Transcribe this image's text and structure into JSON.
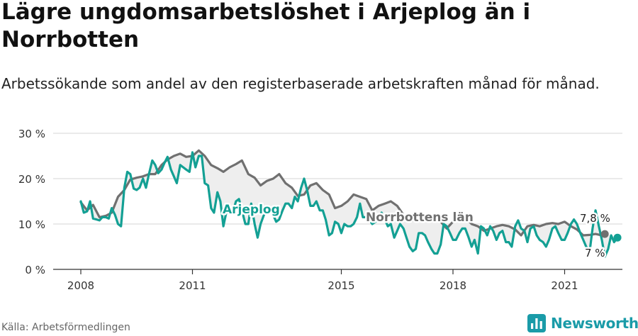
{
  "title": "Lägre ungdomsarbetslöshet i Arjeplog än i Norrbotten",
  "subtitle": "Arbetssökande som andel av den registerbaserade arbetskraften månad för månad.",
  "source": "Källa: Arbetsförmedlingen",
  "brand": "Newsworthy",
  "colors": {
    "arjeplog": "#13a094",
    "norrbotten": "#707070",
    "grid": "#dddddd",
    "fill": "#eeeeee",
    "brand": "#1a9ba8"
  },
  "chart_data": {
    "type": "line",
    "xlim": [
      2008,
      2022.75
    ],
    "ylim": [
      0,
      30
    ],
    "x_ticks": [
      {
        "value": 2008,
        "label": "2008"
      },
      {
        "value": 2011,
        "label": "2011"
      },
      {
        "value": 2015,
        "label": "2015"
      },
      {
        "value": 2018,
        "label": "2018"
      },
      {
        "value": 2021,
        "label": "2021"
      }
    ],
    "y_ticks": [
      {
        "value": 0,
        "label": "0 %"
      },
      {
        "value": 10,
        "label": "10 %"
      },
      {
        "value": 20,
        "label": "20 %"
      },
      {
        "value": 30,
        "label": "30 %"
      }
    ],
    "grid": true,
    "series": [
      {
        "name": "Norrbottens län",
        "end_label": "7,8 %",
        "points": [
          [
            2008.0,
            14.8
          ],
          [
            2008.17,
            13.0
          ],
          [
            2008.33,
            14.2
          ],
          [
            2008.5,
            11.5
          ],
          [
            2008.67,
            11.8
          ],
          [
            2008.83,
            12.5
          ],
          [
            2009.0,
            16.0
          ],
          [
            2009.17,
            17.5
          ],
          [
            2009.33,
            19.8
          ],
          [
            2009.5,
            20.2
          ],
          [
            2009.67,
            20.5
          ],
          [
            2009.83,
            21.0
          ],
          [
            2010.0,
            21.0
          ],
          [
            2010.17,
            23.0
          ],
          [
            2010.33,
            24.2
          ],
          [
            2010.5,
            25.0
          ],
          [
            2010.67,
            25.5
          ],
          [
            2010.83,
            24.8
          ],
          [
            2011.0,
            25.0
          ],
          [
            2011.17,
            26.2
          ],
          [
            2011.33,
            25.0
          ],
          [
            2011.5,
            23.0
          ],
          [
            2011.67,
            22.3
          ],
          [
            2011.83,
            21.5
          ],
          [
            2012.0,
            22.5
          ],
          [
            2012.17,
            23.2
          ],
          [
            2012.33,
            24.0
          ],
          [
            2012.5,
            21.0
          ],
          [
            2012.67,
            20.2
          ],
          [
            2012.83,
            18.5
          ],
          [
            2013.0,
            19.5
          ],
          [
            2013.17,
            20.0
          ],
          [
            2013.33,
            21.0
          ],
          [
            2013.5,
            19.0
          ],
          [
            2013.67,
            18.0
          ],
          [
            2013.83,
            16.2
          ],
          [
            2014.0,
            16.5
          ],
          [
            2014.17,
            18.5
          ],
          [
            2014.33,
            19.0
          ],
          [
            2014.5,
            17.5
          ],
          [
            2014.67,
            16.5
          ],
          [
            2014.83,
            13.5
          ],
          [
            2015.0,
            14.0
          ],
          [
            2015.17,
            15.0
          ],
          [
            2015.33,
            16.5
          ],
          [
            2015.5,
            16.0
          ],
          [
            2015.67,
            15.5
          ],
          [
            2015.83,
            13.0
          ],
          [
            2016.0,
            14.0
          ],
          [
            2016.17,
            14.5
          ],
          [
            2016.33,
            15.0
          ],
          [
            2016.5,
            14.0
          ],
          [
            2016.67,
            12.0
          ],
          [
            2016.83,
            10.5
          ],
          [
            2017.0,
            11.0
          ],
          [
            2017.17,
            11.5
          ],
          [
            2017.33,
            12.0
          ],
          [
            2017.5,
            11.5
          ],
          [
            2017.67,
            10.5
          ],
          [
            2017.83,
            9.0
          ],
          [
            2018.0,
            10.5
          ],
          [
            2018.17,
            11.0
          ],
          [
            2018.33,
            11.5
          ],
          [
            2018.5,
            10.0
          ],
          [
            2018.67,
            9.5
          ],
          [
            2018.83,
            8.5
          ],
          [
            2019.0,
            9.0
          ],
          [
            2019.17,
            9.5
          ],
          [
            2019.33,
            9.8
          ],
          [
            2019.5,
            9.5
          ],
          [
            2019.67,
            8.8
          ],
          [
            2019.83,
            7.5
          ],
          [
            2020.0,
            9.5
          ],
          [
            2020.17,
            9.8
          ],
          [
            2020.33,
            9.5
          ],
          [
            2020.5,
            10.0
          ],
          [
            2020.67,
            10.2
          ],
          [
            2020.83,
            10.0
          ],
          [
            2021.0,
            10.5
          ],
          [
            2021.17,
            9.5
          ],
          [
            2021.33,
            8.8
          ],
          [
            2021.5,
            7.5
          ],
          [
            2021.67,
            7.6
          ],
          [
            2021.83,
            7.8
          ],
          [
            2022.0,
            7.5
          ],
          [
            2022.08,
            7.8
          ]
        ]
      },
      {
        "name": "Arjeplog",
        "end_label": "7 %",
        "points": [
          [
            2008.0,
            15.0
          ],
          [
            2008.08,
            12.5
          ],
          [
            2008.17,
            12.8
          ],
          [
            2008.25,
            15.0
          ],
          [
            2008.33,
            11.2
          ],
          [
            2008.42,
            11.0
          ],
          [
            2008.5,
            10.8
          ],
          [
            2008.58,
            11.5
          ],
          [
            2008.67,
            11.5
          ],
          [
            2008.75,
            11.2
          ],
          [
            2008.83,
            13.5
          ],
          [
            2008.92,
            12.0
          ],
          [
            2009.0,
            10.0
          ],
          [
            2009.08,
            9.5
          ],
          [
            2009.17,
            18.0
          ],
          [
            2009.25,
            21.5
          ],
          [
            2009.33,
            21.0
          ],
          [
            2009.42,
            17.8
          ],
          [
            2009.5,
            17.5
          ],
          [
            2009.58,
            18.0
          ],
          [
            2009.67,
            20.0
          ],
          [
            2009.75,
            18.0
          ],
          [
            2009.83,
            21.0
          ],
          [
            2009.92,
            24.0
          ],
          [
            2010.0,
            23.0
          ],
          [
            2010.08,
            21.2
          ],
          [
            2010.17,
            22.0
          ],
          [
            2010.25,
            23.5
          ],
          [
            2010.33,
            24.8
          ],
          [
            2010.42,
            22.0
          ],
          [
            2010.5,
            20.5
          ],
          [
            2010.58,
            19.0
          ],
          [
            2010.67,
            23.0
          ],
          [
            2010.75,
            22.5
          ],
          [
            2010.83,
            22.0
          ],
          [
            2010.92,
            21.5
          ],
          [
            2011.0,
            25.8
          ],
          [
            2011.08,
            22.5
          ],
          [
            2011.17,
            25.0
          ],
          [
            2011.25,
            25.0
          ],
          [
            2011.33,
            19.0
          ],
          [
            2011.42,
            18.5
          ],
          [
            2011.5,
            13.5
          ],
          [
            2011.58,
            12.5
          ],
          [
            2011.67,
            17.0
          ],
          [
            2011.75,
            15.0
          ],
          [
            2011.83,
            9.5
          ],
          [
            2011.92,
            13.0
          ],
          [
            2012.0,
            13.0
          ],
          [
            2012.08,
            12.5
          ],
          [
            2012.17,
            15.0
          ],
          [
            2012.25,
            15.5
          ],
          [
            2012.33,
            13.0
          ],
          [
            2012.42,
            10.0
          ],
          [
            2012.5,
            10.0
          ],
          [
            2012.58,
            14.5
          ],
          [
            2012.67,
            10.0
          ],
          [
            2012.75,
            7.0
          ],
          [
            2012.83,
            10.0
          ],
          [
            2012.92,
            12.0
          ],
          [
            2013.0,
            13.5
          ],
          [
            2013.08,
            13.5
          ],
          [
            2013.17,
            12.0
          ],
          [
            2013.25,
            10.5
          ],
          [
            2013.33,
            11.0
          ],
          [
            2013.42,
            13.0
          ],
          [
            2013.5,
            14.5
          ],
          [
            2013.58,
            14.5
          ],
          [
            2013.67,
            13.5
          ],
          [
            2013.75,
            16.0
          ],
          [
            2013.83,
            15.0
          ],
          [
            2013.92,
            18.0
          ],
          [
            2014.0,
            20.0
          ],
          [
            2014.08,
            17.5
          ],
          [
            2014.17,
            14.0
          ],
          [
            2014.25,
            14.0
          ],
          [
            2014.33,
            15.0
          ],
          [
            2014.42,
            13.0
          ],
          [
            2014.5,
            13.0
          ],
          [
            2014.58,
            11.0
          ],
          [
            2014.67,
            7.5
          ],
          [
            2014.75,
            8.0
          ],
          [
            2014.83,
            10.5
          ],
          [
            2014.92,
            10.0
          ],
          [
            2015.0,
            8.0
          ],
          [
            2015.08,
            10.0
          ],
          [
            2015.17,
            9.5
          ],
          [
            2015.25,
            9.5
          ],
          [
            2015.33,
            10.0
          ],
          [
            2015.42,
            11.5
          ],
          [
            2015.5,
            14.5
          ],
          [
            2015.58,
            11.5
          ],
          [
            2015.67,
            11.5
          ],
          [
            2015.75,
            11.0
          ],
          [
            2015.83,
            10.0
          ],
          [
            2015.92,
            10.5
          ],
          [
            2016.0,
            11.0
          ],
          [
            2016.08,
            12.5
          ],
          [
            2016.17,
            11.0
          ],
          [
            2016.25,
            9.5
          ],
          [
            2016.33,
            10.0
          ],
          [
            2016.42,
            7.0
          ],
          [
            2016.5,
            8.5
          ],
          [
            2016.58,
            10.0
          ],
          [
            2016.67,
            9.0
          ],
          [
            2016.75,
            7.0
          ],
          [
            2016.83,
            5.0
          ],
          [
            2016.92,
            4.0
          ],
          [
            2017.0,
            4.5
          ],
          [
            2017.08,
            8.0
          ],
          [
            2017.17,
            8.0
          ],
          [
            2017.25,
            7.5
          ],
          [
            2017.33,
            6.0
          ],
          [
            2017.42,
            4.5
          ],
          [
            2017.5,
            3.5
          ],
          [
            2017.58,
            3.5
          ],
          [
            2017.67,
            5.5
          ],
          [
            2017.75,
            10.0
          ],
          [
            2017.83,
            9.5
          ],
          [
            2017.92,
            8.0
          ],
          [
            2018.0,
            6.5
          ],
          [
            2018.08,
            6.5
          ],
          [
            2018.17,
            8.0
          ],
          [
            2018.25,
            9.0
          ],
          [
            2018.33,
            9.0
          ],
          [
            2018.42,
            7.0
          ],
          [
            2018.5,
            5.0
          ],
          [
            2018.58,
            6.5
          ],
          [
            2018.67,
            3.5
          ],
          [
            2018.75,
            9.5
          ],
          [
            2018.83,
            9.0
          ],
          [
            2018.92,
            7.5
          ],
          [
            2019.0,
            9.5
          ],
          [
            2019.08,
            8.5
          ],
          [
            2019.17,
            6.5
          ],
          [
            2019.25,
            8.0
          ],
          [
            2019.33,
            8.5
          ],
          [
            2019.42,
            6.0
          ],
          [
            2019.5,
            6.0
          ],
          [
            2019.58,
            5.0
          ],
          [
            2019.67,
            9.5
          ],
          [
            2019.75,
            10.8
          ],
          [
            2019.83,
            9.0
          ],
          [
            2019.92,
            8.5
          ],
          [
            2020.0,
            6.0
          ],
          [
            2020.08,
            9.0
          ],
          [
            2020.17,
            9.5
          ],
          [
            2020.25,
            7.5
          ],
          [
            2020.33,
            6.5
          ],
          [
            2020.42,
            6.0
          ],
          [
            2020.5,
            5.0
          ],
          [
            2020.58,
            6.5
          ],
          [
            2020.67,
            9.0
          ],
          [
            2020.75,
            9.5
          ],
          [
            2020.83,
            8.0
          ],
          [
            2020.92,
            6.5
          ],
          [
            2021.0,
            6.5
          ],
          [
            2021.08,
            8.0
          ],
          [
            2021.17,
            10.0
          ],
          [
            2021.25,
            11.0
          ],
          [
            2021.33,
            10.0
          ],
          [
            2021.42,
            8.0
          ],
          [
            2021.5,
            6.5
          ],
          [
            2021.58,
            5.0
          ],
          [
            2021.67,
            3.8
          ],
          [
            2021.75,
            9.0
          ],
          [
            2021.83,
            13.0
          ],
          [
            2021.92,
            9.5
          ],
          [
            2022.0,
            6.5
          ],
          [
            2022.08,
            2.8
          ],
          [
            2022.17,
            4.5
          ],
          [
            2022.25,
            7.5
          ],
          [
            2022.33,
            6.0
          ],
          [
            2022.42,
            7.0
          ]
        ]
      }
    ]
  }
}
